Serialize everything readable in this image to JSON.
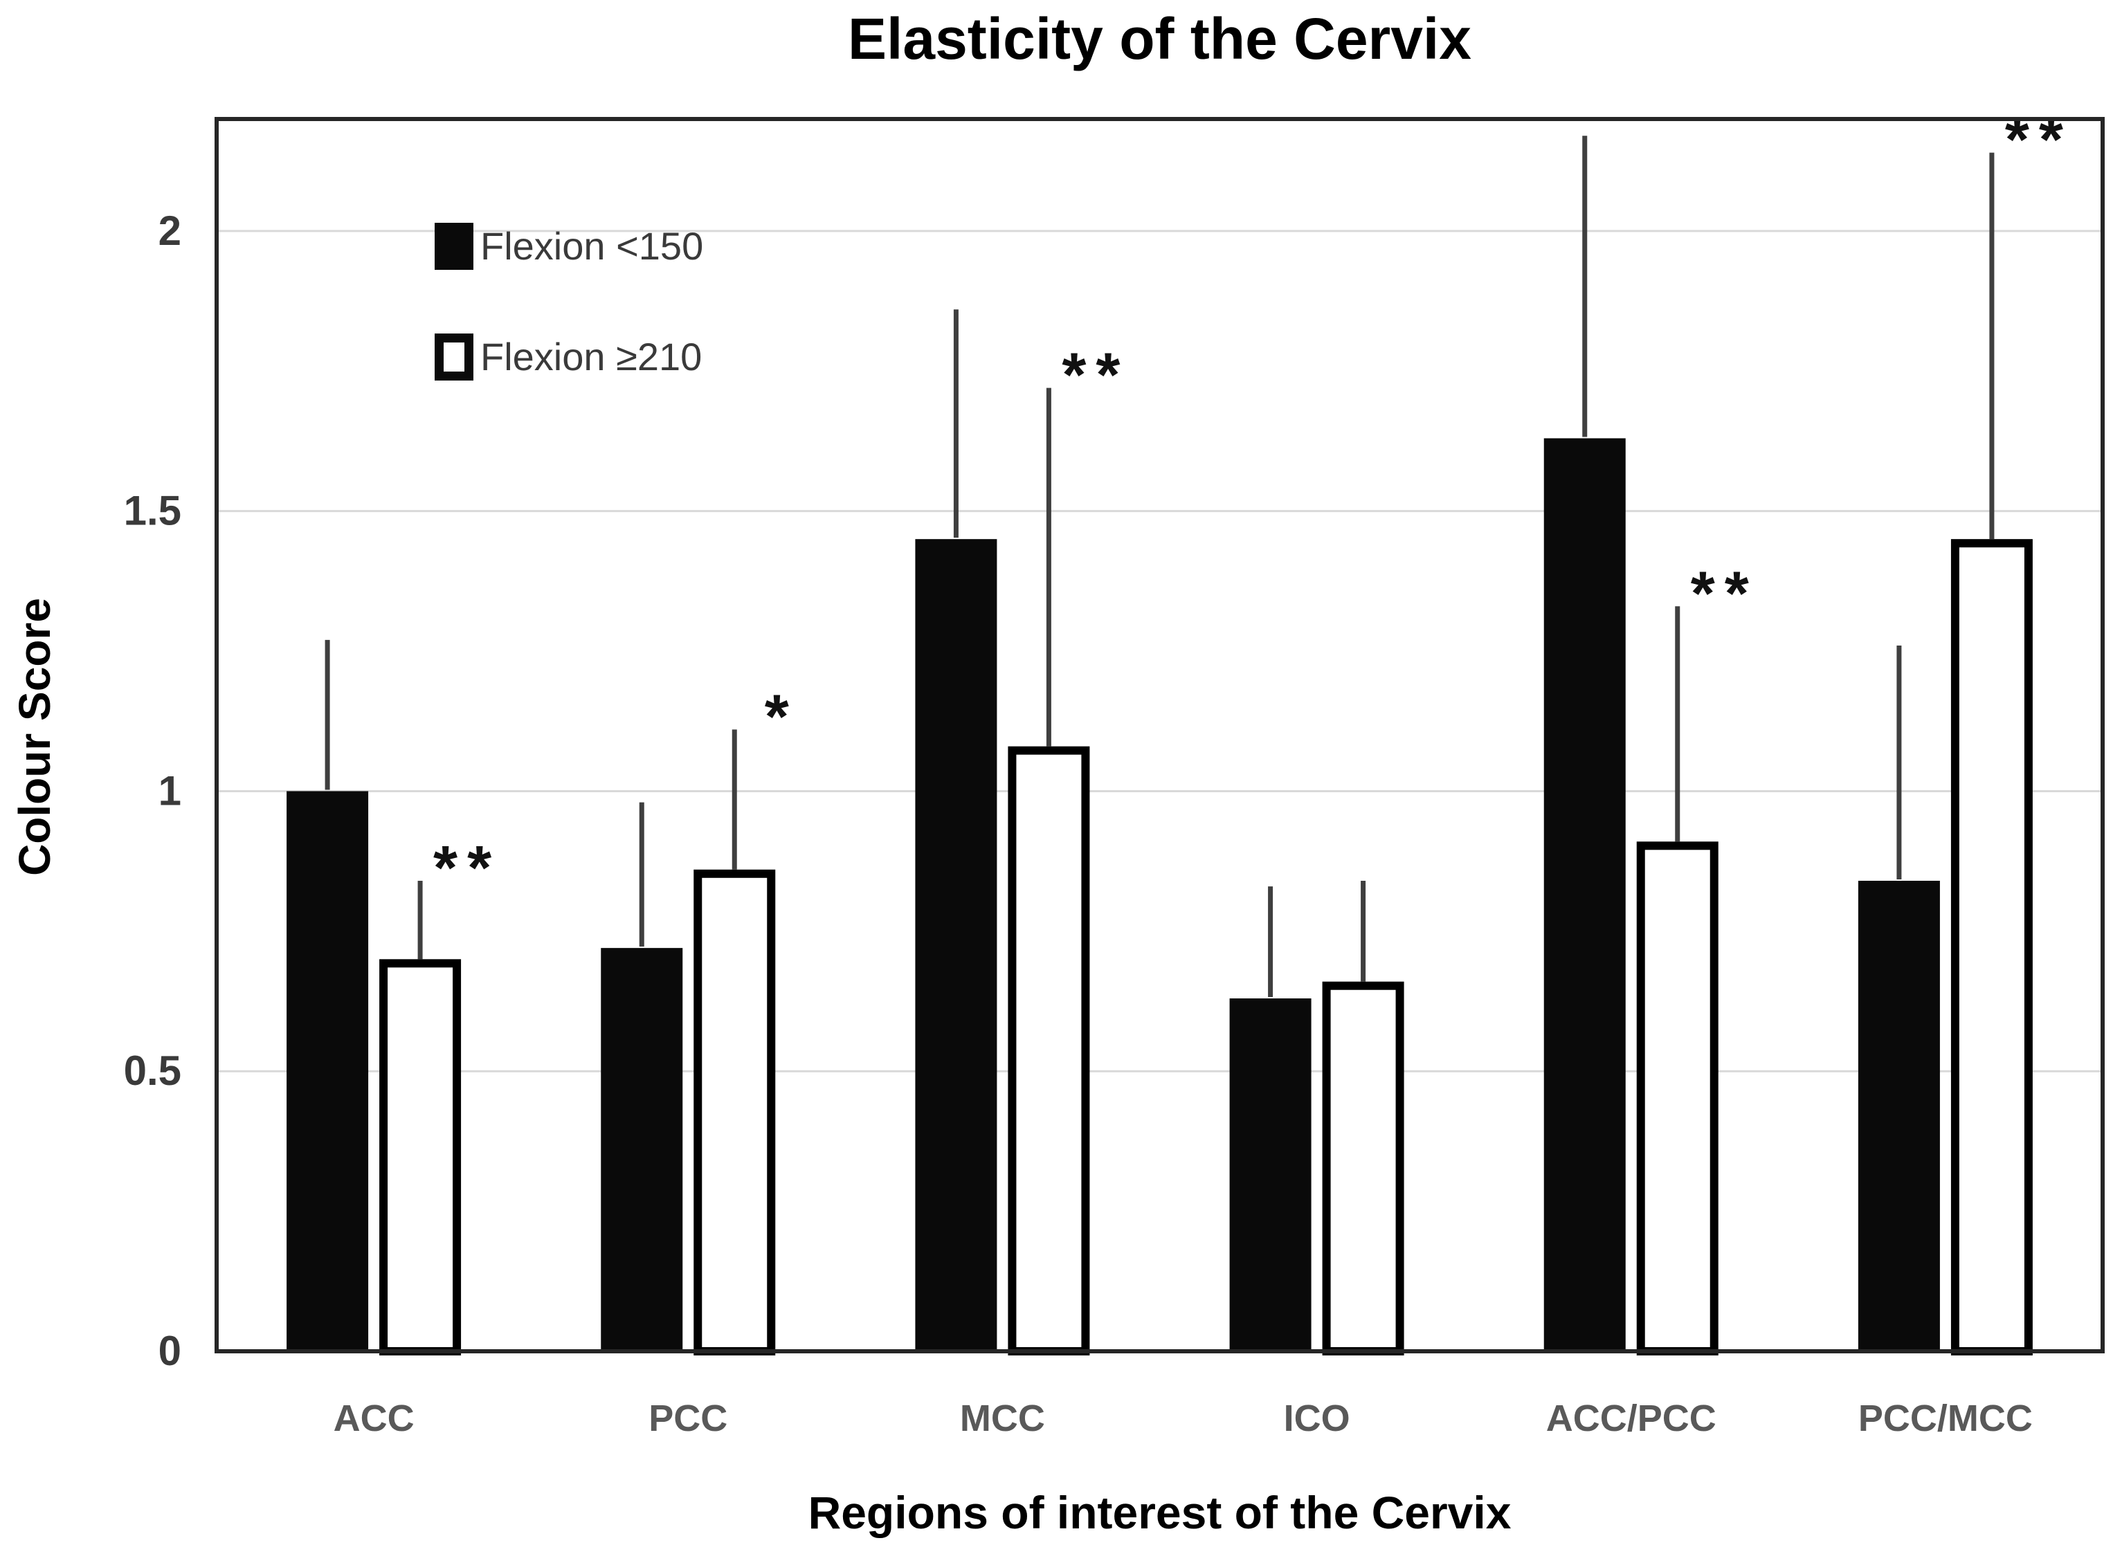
{
  "chart_data": {
    "type": "bar",
    "title": "Elasticity of the Cervix",
    "xlabel": "Regions of interest of the Cervix",
    "ylabel": "Colour Score",
    "categories": [
      "ACC",
      "PCC",
      "MCC",
      "ICO",
      "ACC/PCC",
      "PCC/MCC"
    ],
    "series": [
      {
        "name": "Flexion <150",
        "style": "filled-black",
        "values": [
          1.0,
          0.72,
          1.45,
          0.63,
          1.63,
          0.84
        ],
        "error_bar_tops": [
          1.27,
          0.98,
          1.86,
          0.83,
          2.17,
          1.26
        ]
      },
      {
        "name": "Flexion ≥210",
        "style": "white-black-outline",
        "values": [
          0.7,
          0.86,
          1.08,
          0.66,
          0.91,
          1.45
        ],
        "error_bar_tops": [
          0.84,
          1.11,
          1.72,
          0.84,
          1.33,
          2.14
        ]
      }
    ],
    "significance_markers": [
      "**",
      "*",
      "**",
      "",
      "**",
      "**"
    ],
    "yticks": [
      0,
      0.5,
      1,
      1.5,
      2
    ],
    "ytick_labels": [
      "0",
      "0.5",
      "1",
      "1.5",
      "2"
    ],
    "ylim": [
      0,
      2.2
    ],
    "grid": "horizontal-light",
    "legend_position": "inside-top-left",
    "error_bars": "upper-only-no-caps",
    "colors": {
      "bar_filled": "#0a0a0a",
      "bar_outline": "#000000",
      "bar_white_fill": "#ffffff",
      "gridline": "#d9d9d9",
      "frame": "#262626",
      "error_bar": "#3f3f3f",
      "tick_label": "#3a3a3a",
      "category_label": "#595959",
      "significance": "#111111",
      "title": "#000000"
    }
  }
}
